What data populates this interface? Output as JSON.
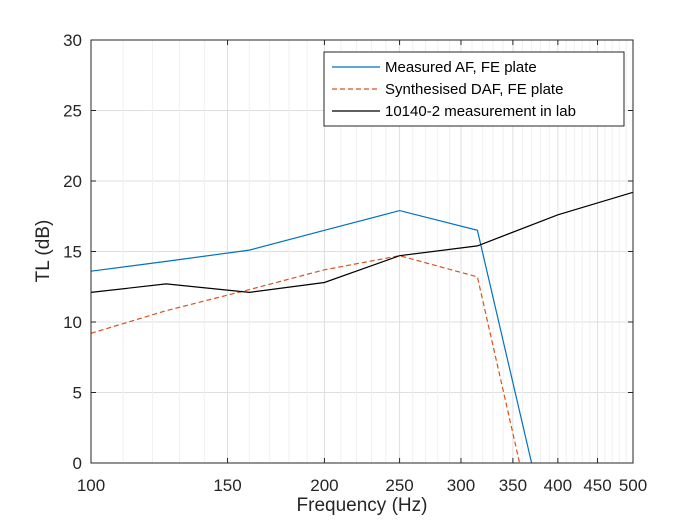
{
  "chart_data": {
    "type": "line",
    "xlabel": "Frequency (Hz)",
    "ylabel": "TL (dB)",
    "x_scale": "log",
    "xlim": [
      100,
      500
    ],
    "ylim": [
      0,
      30
    ],
    "x_ticks": [
      100,
      150,
      200,
      250,
      300,
      350,
      400,
      450,
      500
    ],
    "x_tick_labels": [
      "100",
      "150",
      "200",
      "250",
      "300",
      "350",
      "400",
      "450",
      "500"
    ],
    "y_ticks": [
      0,
      5,
      10,
      15,
      20,
      25,
      30
    ],
    "y_tick_labels": [
      "0",
      "5",
      "10",
      "15",
      "20",
      "25",
      "30"
    ],
    "grid": true,
    "legend_position": "top-right",
    "series": [
      {
        "name": "Measured AF, FE plate",
        "color": "#0072BD",
        "style": "solid",
        "x": [
          100,
          125,
          160,
          200,
          250,
          315,
          370
        ],
        "y": [
          13.6,
          14.3,
          15.1,
          16.5,
          17.9,
          16.5,
          0
        ]
      },
      {
        "name": "Synthesised DAF, FE plate",
        "color": "#D95319",
        "style": "dashed",
        "x": [
          100,
          125,
          160,
          200,
          250,
          315,
          357
        ],
        "y": [
          9.2,
          10.8,
          12.3,
          13.7,
          14.7,
          13.2,
          0
        ]
      },
      {
        "name": "10140-2 measurement in lab",
        "color": "#000000",
        "style": "solid",
        "x": [
          100,
          125,
          160,
          200,
          250,
          315,
          400,
          500
        ],
        "y": [
          12.1,
          12.7,
          12.1,
          12.8,
          14.7,
          15.4,
          17.6,
          19.2
        ]
      }
    ]
  }
}
